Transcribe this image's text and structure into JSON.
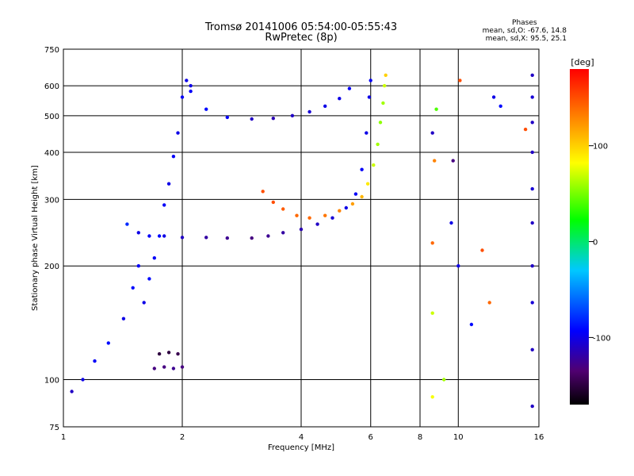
{
  "header": {
    "title_line1": "Tromsø 20141006 05:54:00-05:55:43",
    "title_line2": "RwPretec (8p)"
  },
  "stats": {
    "title": "Phases",
    "line_o": "mean, sd,O: -67.6, 14.8",
    "line_x": "mean, sd,X:  95.5, 25.1"
  },
  "colorbar": {
    "unit_label": "[deg]",
    "ticks": [
      "100",
      "0",
      "-100"
    ],
    "tick_values": [
      100,
      0,
      -100
    ],
    "range": [
      -170,
      180
    ]
  },
  "chart_data": {
    "type": "scatter",
    "xlabel": "Frequency [MHz]",
    "ylabel": "Stationary phase Virtual Height [km]",
    "x_scale": "log",
    "y_scale": "log",
    "xlim": [
      1,
      16
    ],
    "ylim": [
      75,
      750
    ],
    "x_ticks": [
      "1",
      "2",
      "4",
      "6",
      "8",
      "10",
      "16"
    ],
    "x_tick_values": [
      1,
      2,
      4,
      6,
      8,
      10,
      16
    ],
    "y_ticks": [
      "75",
      "100",
      "200",
      "300",
      "400",
      "500",
      "600",
      "750"
    ],
    "y_tick_values": [
      75,
      100,
      200,
      300,
      400,
      500,
      600,
      750
    ],
    "grid": true,
    "series": [
      {
        "points": [
          [
            1.05,
            93,
            -110
          ],
          [
            1.12,
            100,
            -100
          ],
          [
            1.2,
            112,
            -95
          ],
          [
            1.3,
            125,
            -90
          ],
          [
            1.42,
            145,
            -100
          ],
          [
            1.5,
            175,
            -90
          ],
          [
            1.55,
            200,
            -95
          ],
          [
            1.6,
            160,
            -100
          ],
          [
            1.65,
            185,
            -90
          ],
          [
            1.7,
            210,
            -95
          ],
          [
            1.75,
            240,
            -90
          ],
          [
            1.8,
            290,
            -95
          ],
          [
            1.85,
            330,
            -100
          ],
          [
            1.9,
            390,
            -95
          ],
          [
            1.95,
            450,
            -100
          ],
          [
            2.0,
            560,
            -95
          ],
          [
            2.05,
            620,
            -100
          ],
          [
            2.1,
            580,
            -95
          ]
        ]
      },
      {
        "points": [
          [
            1.45,
            258,
            -80
          ],
          [
            1.55,
            245,
            -100
          ],
          [
            1.65,
            240,
            -95
          ],
          [
            1.8,
            240,
            -100
          ],
          [
            2.0,
            238,
            -110
          ],
          [
            2.3,
            238,
            -120
          ],
          [
            2.6,
            237,
            -125
          ],
          [
            3.0,
            237,
            -130
          ],
          [
            3.3,
            240,
            -125
          ],
          [
            3.6,
            245,
            -120
          ],
          [
            4.0,
            250,
            -115
          ],
          [
            4.4,
            258,
            -110
          ],
          [
            4.8,
            268,
            -105
          ],
          [
            5.2,
            285,
            -100
          ],
          [
            5.5,
            310,
            -95
          ],
          [
            5.7,
            360,
            -95
          ],
          [
            5.85,
            450,
            -100
          ],
          [
            5.95,
            560,
            -100
          ],
          [
            6.0,
            620,
            -95
          ]
        ]
      },
      {
        "points": [
          [
            2.1,
            600,
            -100
          ],
          [
            2.3,
            520,
            -90
          ],
          [
            2.6,
            495,
            -95
          ],
          [
            3.0,
            490,
            -110
          ],
          [
            3.4,
            492,
            -115
          ],
          [
            3.8,
            500,
            -110
          ],
          [
            4.2,
            512,
            -105
          ],
          [
            4.6,
            530,
            -100
          ],
          [
            5.0,
            555,
            -100
          ],
          [
            5.3,
            590,
            -95
          ]
        ]
      },
      {
        "points": [
          [
            1.7,
            107,
            -130
          ],
          [
            1.8,
            108,
            -130
          ],
          [
            1.9,
            107,
            -125
          ],
          [
            2.0,
            108,
            -130
          ],
          [
            1.75,
            117,
            -150
          ],
          [
            1.85,
            118,
            -150
          ],
          [
            1.95,
            117,
            -145
          ]
        ]
      },
      {
        "points": [
          [
            3.2,
            315,
            150
          ],
          [
            3.4,
            295,
            150
          ],
          [
            3.6,
            283,
            145
          ],
          [
            3.9,
            272,
            140
          ],
          [
            4.2,
            268,
            140
          ],
          [
            4.6,
            272,
            135
          ],
          [
            5.0,
            280,
            130
          ],
          [
            5.4,
            292,
            120
          ],
          [
            5.7,
            305,
            110
          ],
          [
            5.9,
            330,
            90
          ],
          [
            6.1,
            370,
            70
          ],
          [
            6.25,
            420,
            60
          ],
          [
            6.35,
            480,
            55
          ],
          [
            6.45,
            540,
            60
          ],
          [
            6.5,
            600,
            70
          ],
          [
            6.55,
            640,
            100
          ]
        ]
      },
      {
        "points": [
          [
            15.4,
            85,
            -110
          ],
          [
            15.4,
            120,
            -110
          ],
          [
            15.4,
            160,
            -105
          ],
          [
            15.4,
            200,
            -110
          ],
          [
            15.4,
            260,
            -110
          ],
          [
            15.4,
            320,
            -105
          ],
          [
            15.4,
            400,
            -110
          ],
          [
            15.4,
            480,
            -110
          ],
          [
            15.4,
            560,
            -105
          ],
          [
            15.4,
            640,
            -110
          ]
        ]
      },
      {
        "points": [
          [
            8.6,
            90,
            80
          ],
          [
            8.6,
            150,
            70
          ],
          [
            8.6,
            230,
            140
          ],
          [
            8.7,
            380,
            130
          ],
          [
            8.6,
            450,
            -110
          ],
          [
            8.8,
            520,
            40
          ],
          [
            9.2,
            100,
            60
          ],
          [
            9.6,
            260,
            -100
          ],
          [
            9.7,
            380,
            -130
          ],
          [
            10.0,
            200,
            -100
          ],
          [
            10.1,
            620,
            150
          ],
          [
            10.8,
            140,
            -90
          ],
          [
            11.5,
            220,
            150
          ],
          [
            12.0,
            160,
            140
          ],
          [
            12.3,
            560,
            -100
          ],
          [
            12.8,
            530,
            -90
          ],
          [
            14.8,
            460,
            150
          ]
        ]
      }
    ]
  }
}
